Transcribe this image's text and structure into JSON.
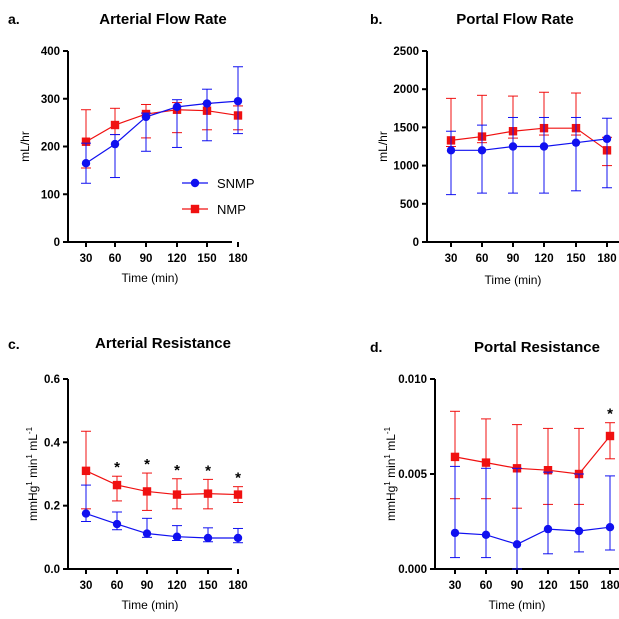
{
  "chart_data": [
    {
      "panel": "a.",
      "title": "Arterial Flow Rate",
      "type": "line",
      "xlabel": "Time (min)",
      "ylabel": "mL/hr",
      "categories": [
        "30",
        "60",
        "90",
        "120",
        "150",
        "180"
      ],
      "ylim": [
        0,
        400
      ],
      "yticks": [
        "0",
        "100",
        "200",
        "300",
        "400"
      ],
      "series": [
        {
          "name": "SNMP",
          "color": "#1010f0",
          "marker": "circle",
          "values": [
            165,
            205,
            262,
            283,
            290,
            295
          ],
          "err_low": [
            42,
            70,
            72,
            85,
            78,
            68
          ],
          "err_high": [
            42,
            20,
            8,
            15,
            30,
            72
          ]
        },
        {
          "name": "NMP",
          "color": "#f01010",
          "marker": "square",
          "values": [
            210,
            245,
            268,
            277,
            275,
            265
          ],
          "err_low": [
            55,
            20,
            50,
            48,
            40,
            30
          ],
          "err_high": [
            67,
            35,
            20,
            15,
            15,
            20
          ]
        }
      ],
      "legend": {
        "position": "bottom-right"
      },
      "significance": []
    },
    {
      "panel": "b.",
      "title": "Portal Flow Rate",
      "type": "line",
      "xlabel": "Time (min)",
      "ylabel": "mL/hr",
      "categories": [
        "30",
        "60",
        "90",
        "120",
        "150",
        "180"
      ],
      "ylim": [
        0,
        2500
      ],
      "yticks": [
        "0",
        "500",
        "1000",
        "1500",
        "2000",
        "2500"
      ],
      "series": [
        {
          "name": "SNMP",
          "color": "#1010f0",
          "marker": "circle",
          "values": [
            1200,
            1200,
            1250,
            1250,
            1300,
            1350
          ],
          "err_low": [
            580,
            560,
            610,
            610,
            630,
            640
          ],
          "err_high": [
            250,
            330,
            380,
            380,
            330,
            270
          ]
        },
        {
          "name": "NMP",
          "color": "#f01010",
          "marker": "square",
          "values": [
            1330,
            1380,
            1450,
            1490,
            1490,
            1200
          ],
          "err_low": [
            80,
            80,
            90,
            90,
            90,
            200
          ],
          "err_high": [
            550,
            540,
            460,
            470,
            460,
            170
          ]
        }
      ],
      "significance": []
    },
    {
      "panel": "c.",
      "title": "Arterial Resistance",
      "type": "line",
      "xlabel": "Time (min)",
      "ylabel": "mmHg",
      "ylabel_sup": "1",
      "ylabel_mid": " min",
      "ylabel_sup2": "1",
      "ylabel_tail": " mL",
      "ylabel_sup3": "-1",
      "categories": [
        "30",
        "60",
        "90",
        "120",
        "150",
        "180"
      ],
      "ylim": [
        0,
        0.6
      ],
      "yticks": [
        "0.0",
        "0.2",
        "0.4",
        "0.6"
      ],
      "series": [
        {
          "name": "SNMP",
          "color": "#1010f0",
          "marker": "circle",
          "values": [
            0.175,
            0.142,
            0.112,
            0.102,
            0.098,
            0.098
          ],
          "err_low": [
            0.025,
            0.018,
            0.012,
            0.012,
            0.012,
            0.015
          ],
          "err_high": [
            0.09,
            0.038,
            0.048,
            0.035,
            0.032,
            0.03
          ]
        },
        {
          "name": "NMP",
          "color": "#f01010",
          "marker": "square",
          "values": [
            0.31,
            0.265,
            0.245,
            0.235,
            0.238,
            0.235
          ],
          "err_low": [
            0.12,
            0.05,
            0.06,
            0.045,
            0.048,
            0.025
          ],
          "err_high": [
            0.125,
            0.028,
            0.058,
            0.05,
            0.045,
            0.025
          ]
        }
      ],
      "significance": [
        "",
        "*",
        "*",
        "*",
        "*",
        "*"
      ]
    },
    {
      "panel": "d.",
      "title": "Portal Resistance",
      "type": "line",
      "xlabel": "Time (min)",
      "ylabel": "mmHg",
      "ylabel_sup": "1",
      "ylabel_mid": " min",
      "ylabel_sup2": "1",
      "ylabel_tail": " mL",
      "ylabel_sup3": "-1",
      "categories": [
        "30",
        "60",
        "90",
        "120",
        "150",
        "180"
      ],
      "ylim": [
        0,
        0.01
      ],
      "yticks": [
        "0.000",
        "0.005",
        "0.010"
      ],
      "series": [
        {
          "name": "SNMP",
          "color": "#1010f0",
          "marker": "circle",
          "values": [
            0.0019,
            0.0018,
            0.0013,
            0.0021,
            0.002,
            0.0022
          ],
          "err_low": [
            0.0013,
            0.0012,
            0.0013,
            0.0013,
            0.0011,
            0.0012
          ],
          "err_high": [
            0.0035,
            0.0035,
            0.004,
            0.003,
            0.003,
            0.0027
          ]
        },
        {
          "name": "NMP",
          "color": "#f01010",
          "marker": "square",
          "values": [
            0.0059,
            0.0056,
            0.0053,
            0.0052,
            0.005,
            0.007
          ],
          "err_low": [
            0.0022,
            0.0019,
            0.0021,
            0.0018,
            0.0016,
            0.0012
          ],
          "err_high": [
            0.0024,
            0.0023,
            0.0023,
            0.0022,
            0.0024,
            0.0007
          ]
        }
      ],
      "significance": [
        "",
        "",
        "",
        "",
        "",
        "*"
      ]
    }
  ]
}
